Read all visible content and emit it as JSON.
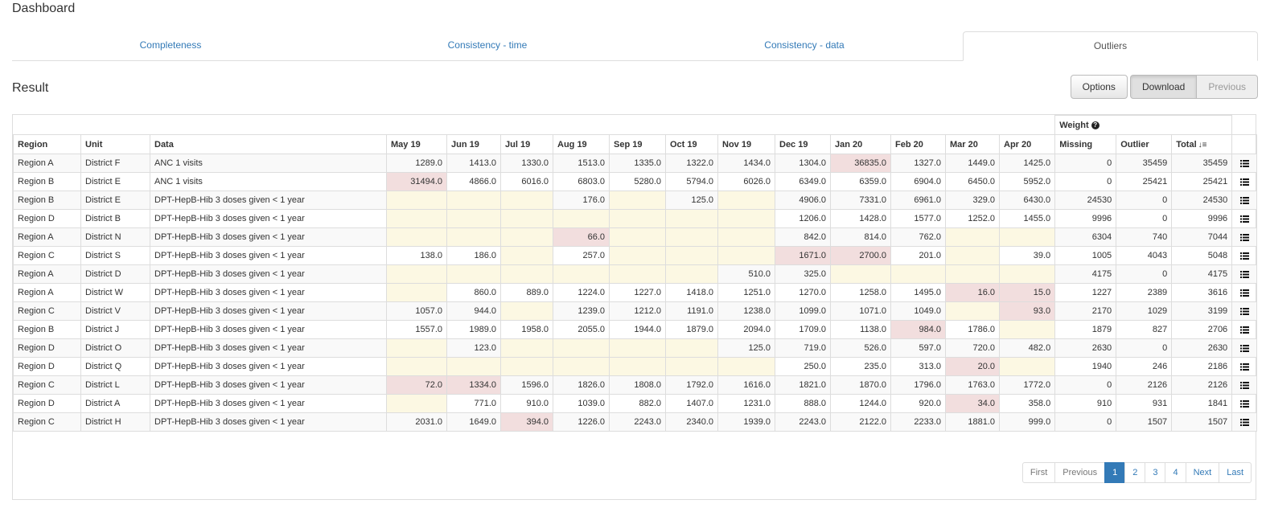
{
  "page_title": "Dashboard",
  "tabs": [
    {
      "label": "Completeness"
    },
    {
      "label": "Consistency - time"
    },
    {
      "label": "Consistency - data"
    },
    {
      "label": "Outliers"
    }
  ],
  "result_title": "Result",
  "buttons": {
    "options": "Options",
    "download": "Download",
    "previous": "Previous"
  },
  "table": {
    "weight_header": "Weight",
    "columns": [
      "Region",
      "Unit",
      "Data",
      "May 19",
      "Jun 19",
      "Jul 19",
      "Aug 19",
      "Sep 19",
      "Oct 19",
      "Nov 19",
      "Dec 19",
      "Jan 20",
      "Feb 20",
      "Mar 20",
      "Apr 20",
      "Missing",
      "Outlier",
      "Total"
    ],
    "rows": [
      [
        "Region A",
        "District F",
        "ANC 1 visits",
        "1289.0",
        "1413.0",
        "1330.0",
        "1513.0",
        "1335.0",
        "1322.0",
        "1434.0",
        "1304.0",
        "36835.0",
        "1327.0",
        "1449.0",
        "1425.0",
        "0",
        "35459",
        "35459"
      ],
      [
        "Region B",
        "District E",
        "ANC 1 visits",
        "31494.0",
        "4866.0",
        "6016.0",
        "6803.0",
        "5280.0",
        "5794.0",
        "6026.0",
        "6349.0",
        "6359.0",
        "6904.0",
        "6450.0",
        "5952.0",
        "0",
        "25421",
        "25421"
      ],
      [
        "Region B",
        "District E",
        "DPT-HepB-Hib 3 doses given < 1 year",
        "",
        "",
        "",
        "176.0",
        "",
        "125.0",
        "",
        "4906.0",
        "7331.0",
        "6961.0",
        "329.0",
        "6430.0",
        "24530",
        "0",
        "24530"
      ],
      [
        "Region D",
        "District B",
        "DPT-HepB-Hib 3 doses given < 1 year",
        "",
        "",
        "",
        "",
        "",
        "",
        "",
        "1206.0",
        "1428.0",
        "1577.0",
        "1252.0",
        "1455.0",
        "9996",
        "0",
        "9996"
      ],
      [
        "Region A",
        "District N",
        "DPT-HepB-Hib 3 doses given < 1 year",
        "",
        "",
        "",
        "66.0",
        "",
        "",
        "",
        "842.0",
        "814.0",
        "762.0",
        "",
        "",
        "6304",
        "740",
        "7044"
      ],
      [
        "Region C",
        "District S",
        "DPT-HepB-Hib 3 doses given < 1 year",
        "138.0",
        "186.0",
        "",
        "257.0",
        "",
        "",
        "",
        "1671.0",
        "2700.0",
        "201.0",
        "",
        "39.0",
        "1005",
        "4043",
        "5048"
      ],
      [
        "Region A",
        "District D",
        "DPT-HepB-Hib 3 doses given < 1 year",
        "",
        "",
        "",
        "",
        "",
        "",
        "510.0",
        "325.0",
        "",
        "",
        "",
        "",
        "4175",
        "0",
        "4175"
      ],
      [
        "Region A",
        "District W",
        "DPT-HepB-Hib 3 doses given < 1 year",
        "",
        "860.0",
        "889.0",
        "1224.0",
        "1227.0",
        "1418.0",
        "1251.0",
        "1270.0",
        "1258.0",
        "1495.0",
        "16.0",
        "15.0",
        "1227",
        "2389",
        "3616"
      ],
      [
        "Region C",
        "District V",
        "DPT-HepB-Hib 3 doses given < 1 year",
        "1057.0",
        "944.0",
        "",
        "1239.0",
        "1212.0",
        "1191.0",
        "1238.0",
        "1099.0",
        "1071.0",
        "1049.0",
        "",
        "93.0",
        "2170",
        "1029",
        "3199"
      ],
      [
        "Region B",
        "District J",
        "DPT-HepB-Hib 3 doses given < 1 year",
        "1557.0",
        "1989.0",
        "1958.0",
        "2055.0",
        "1944.0",
        "1879.0",
        "2094.0",
        "1709.0",
        "1138.0",
        "984.0",
        "1786.0",
        "",
        "1879",
        "827",
        "2706"
      ],
      [
        "Region D",
        "District O",
        "DPT-HepB-Hib 3 doses given < 1 year",
        "",
        "123.0",
        "",
        "",
        "",
        "",
        "125.0",
        "719.0",
        "526.0",
        "597.0",
        "720.0",
        "482.0",
        "2630",
        "0",
        "2630"
      ],
      [
        "Region D",
        "District Q",
        "DPT-HepB-Hib 3 doses given < 1 year",
        "",
        "",
        "",
        "",
        "",
        "",
        "",
        "250.0",
        "235.0",
        "313.0",
        "20.0",
        "",
        "1940",
        "246",
        "2186"
      ],
      [
        "Region C",
        "District L",
        "DPT-HepB-Hib 3 doses given < 1 year",
        "72.0",
        "1334.0",
        "1596.0",
        "1826.0",
        "1808.0",
        "1792.0",
        "1616.0",
        "1821.0",
        "1870.0",
        "1796.0",
        "1763.0",
        "1772.0",
        "0",
        "2126",
        "2126"
      ],
      [
        "Region D",
        "District A",
        "DPT-HepB-Hib 3 doses given < 1 year",
        "",
        "771.0",
        "910.0",
        "1039.0",
        "882.0",
        "1407.0",
        "1231.0",
        "888.0",
        "1244.0",
        "920.0",
        "34.0",
        "358.0",
        "910",
        "931",
        "1841"
      ],
      [
        "Region C",
        "District H",
        "DPT-HepB-Hib 3 doses given < 1 year",
        "2031.0",
        "1649.0",
        "394.0",
        "1226.0",
        "2243.0",
        "2340.0",
        "1939.0",
        "2243.0",
        "2122.0",
        "2233.0",
        "1881.0",
        "999.0",
        "0",
        "1507",
        "1507"
      ]
    ],
    "outlier_cells": [
      [
        0,
        8
      ],
      [
        1,
        0
      ],
      [
        4,
        3
      ],
      [
        5,
        7
      ],
      [
        5,
        8
      ],
      [
        7,
        10
      ],
      [
        7,
        11
      ],
      [
        8,
        11
      ],
      [
        9,
        9
      ],
      [
        11,
        10
      ],
      [
        12,
        0
      ],
      [
        12,
        1
      ],
      [
        13,
        10
      ],
      [
        14,
        2
      ]
    ],
    "colors": {
      "missing": "#fcf8e3",
      "outlier": "#f2dede"
    }
  },
  "pagination": {
    "first": "First",
    "previous": "Previous",
    "pages": [
      "1",
      "2",
      "3",
      "4"
    ],
    "active": "1",
    "next": "Next",
    "last": "Last"
  },
  "icons": {
    "row_menu": "list-icon",
    "weight_info": "info-circle-icon",
    "sort": "sort-desc-icon"
  }
}
